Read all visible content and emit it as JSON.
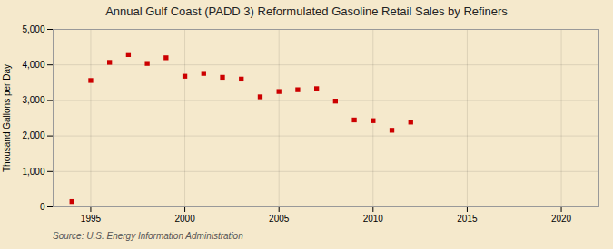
{
  "chart_data": {
    "type": "scatter",
    "title": "Annual Gulf Coast (PADD 3) Reformulated Gasoline Retail Sales by Refiners",
    "ylabel": "Thousand Gallons per Day",
    "caption": "Source: U.S. Energy Information Administration",
    "x": [
      1994,
      1995,
      1996,
      1997,
      1998,
      1999,
      2000,
      2001,
      2002,
      2003,
      2004,
      2005,
      2006,
      2007,
      2008,
      2009,
      2010,
      2011,
      2012
    ],
    "values": [
      150,
      3560,
      4070,
      4290,
      4040,
      4200,
      3680,
      3760,
      3650,
      3600,
      3100,
      3250,
      3300,
      3330,
      2980,
      2450,
      2430,
      2160,
      2390
    ],
    "color": "#cc0000",
    "marker": "square",
    "xlim": [
      1993,
      2022
    ],
    "xticks": [
      1995,
      2000,
      2005,
      2010,
      2015,
      2020
    ],
    "ylim": [
      0,
      5000
    ],
    "yticks": [
      0,
      {
        "value": 1000,
        "label": "1,000"
      },
      {
        "value": 2000,
        "label": "2,000"
      },
      {
        "value": 3000,
        "label": "3,000"
      },
      {
        "value": 4000,
        "label": "4,000"
      },
      {
        "value": 5000,
        "label": "5,000"
      }
    ],
    "grid": true
  }
}
